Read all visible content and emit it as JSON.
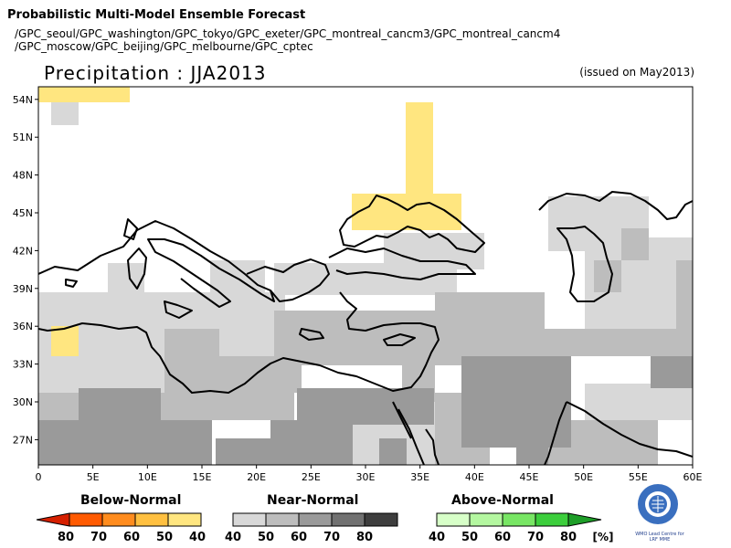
{
  "header": {
    "title": "Probabilistic Multi-Model Ensemble Forecast",
    "models_line1": "/GPC_seoul/GPC_washington/GPC_tokyo/GPC_exeter/GPC_montreal_cancm3/GPC_montreal_cancm4",
    "models_line2": "/GPC_moscow/GPC_beijing/GPC_melbourne/GPC_cptec",
    "subtitle": "Precipitation : JJA2013",
    "issued": "(issued on May2013)"
  },
  "map": {
    "lon_range": [
      0,
      60
    ],
    "lat_range": [
      25,
      55
    ],
    "lat_ticks": [
      "54N",
      "51N",
      "48N",
      "45N",
      "42N",
      "39N",
      "36N",
      "33N",
      "30N",
      "27N"
    ],
    "lon_ticks": [
      "0",
      "5E",
      "10E",
      "15E",
      "20E",
      "25E",
      "30E",
      "35E",
      "40E",
      "45E",
      "50E",
      "55E",
      "60E"
    ]
  },
  "legend": {
    "below_title": "Below-Normal",
    "near_title": "Near-Normal",
    "above_title": "Above-Normal",
    "below_labels": [
      "80",
      "70",
      "60",
      "50",
      "40"
    ],
    "near_labels": [
      "40",
      "50",
      "60",
      "70",
      "80"
    ],
    "above_labels": [
      "40",
      "50",
      "60",
      "70",
      "80"
    ],
    "unit": "[%]",
    "below_colors": [
      "#d62000",
      "#ff5a00",
      "#ff8c1e",
      "#ffc040",
      "#ffe680"
    ],
    "near_colors": [
      "#d8d8d8",
      "#bdbdbd",
      "#9a9a9a",
      "#717171",
      "#3e3e3e"
    ],
    "above_colors": [
      "#d7ffc8",
      "#b4f7a0",
      "#78e664",
      "#3cce3c",
      "#1e9e28"
    ]
  },
  "logo": {
    "icon": "wmo-emblem-icon",
    "text_line1": "WMO Lead Centre for",
    "text_line2": "LRF MME"
  }
}
